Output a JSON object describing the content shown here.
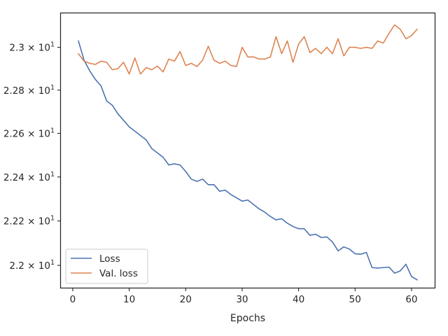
{
  "chart_data": {
    "type": "line",
    "title": "",
    "xlabel": "Epochs",
    "ylabel": "",
    "xlim": [
      -2.1,
      64.1
    ],
    "ylim": [
      21.9,
      23.16
    ],
    "yscale": "log",
    "grid": false,
    "legend_position": "lower-left",
    "x_ticks": [
      {
        "value": 0,
        "label": "0"
      },
      {
        "value": 10,
        "label": "10"
      },
      {
        "value": 20,
        "label": "20"
      },
      {
        "value": 30,
        "label": "30"
      },
      {
        "value": 40,
        "label": "40"
      },
      {
        "value": 50,
        "label": "50"
      },
      {
        "value": 60,
        "label": "60"
      }
    ],
    "y_ticks": [
      {
        "value": 22.0,
        "mantissa": "2.2",
        "times": " × 10",
        "exp": "1"
      },
      {
        "value": 22.2,
        "mantissa": "2.22",
        "times": " × 10",
        "exp": "1"
      },
      {
        "value": 22.4,
        "mantissa": "2.24",
        "times": " × 10",
        "exp": "1"
      },
      {
        "value": 22.6,
        "mantissa": "2.26",
        "times": " × 10",
        "exp": "1"
      },
      {
        "value": 22.8,
        "mantissa": "2.28",
        "times": " × 10",
        "exp": "1"
      },
      {
        "value": 23.0,
        "mantissa": "2.3",
        "times": " × 10",
        "exp": "1"
      }
    ],
    "x": [
      1,
      2,
      3,
      4,
      5,
      6,
      7,
      8,
      9,
      10,
      11,
      12,
      13,
      14,
      15,
      16,
      17,
      18,
      19,
      20,
      21,
      22,
      23,
      24,
      25,
      26,
      27,
      28,
      29,
      30,
      31,
      32,
      33,
      34,
      35,
      36,
      37,
      38,
      39,
      40,
      41,
      42,
      43,
      44,
      45,
      46,
      47,
      48,
      49,
      50,
      51,
      52,
      53,
      54,
      55,
      56,
      57,
      58,
      59,
      60,
      61
    ],
    "series": [
      {
        "name": "Loss",
        "color": "#4c72b0",
        "values": [
          23.03,
          22.94,
          22.89,
          22.85,
          22.82,
          22.75,
          22.73,
          22.69,
          22.66,
          22.63,
          22.61,
          22.59,
          22.57,
          22.53,
          22.51,
          22.49,
          22.455,
          22.46,
          22.455,
          22.425,
          22.39,
          22.38,
          22.39,
          22.365,
          22.365,
          22.335,
          22.34,
          22.32,
          22.305,
          22.29,
          22.295,
          22.275,
          22.255,
          22.24,
          22.22,
          22.205,
          22.21,
          22.19,
          22.175,
          22.165,
          22.165,
          22.135,
          22.14,
          22.125,
          22.128,
          22.105,
          22.065,
          22.083,
          22.073,
          22.052,
          22.05,
          22.058,
          21.99,
          21.988,
          21.99,
          21.992,
          21.965,
          21.975,
          22.005,
          21.95,
          21.935
        ]
      },
      {
        "name": "Val. loss",
        "color": "#dd8452",
        "values": [
          22.97,
          22.935,
          22.925,
          22.92,
          22.935,
          22.93,
          22.895,
          22.9,
          22.93,
          22.875,
          22.95,
          22.875,
          22.905,
          22.895,
          22.912,
          22.885,
          22.945,
          22.935,
          22.98,
          22.915,
          22.925,
          22.91,
          22.94,
          23.005,
          22.94,
          22.925,
          22.935,
          22.915,
          22.91,
          23.0,
          22.955,
          22.955,
          22.945,
          22.945,
          22.955,
          23.05,
          22.97,
          23.03,
          22.93,
          23.015,
          23.05,
          22.975,
          22.995,
          22.97,
          23.0,
          22.97,
          23.04,
          22.96,
          23.0,
          23.0,
          22.995,
          23.0,
          22.995,
          23.03,
          23.02,
          23.065,
          23.105,
          23.085,
          23.04,
          23.055,
          23.085
        ]
      }
    ]
  }
}
